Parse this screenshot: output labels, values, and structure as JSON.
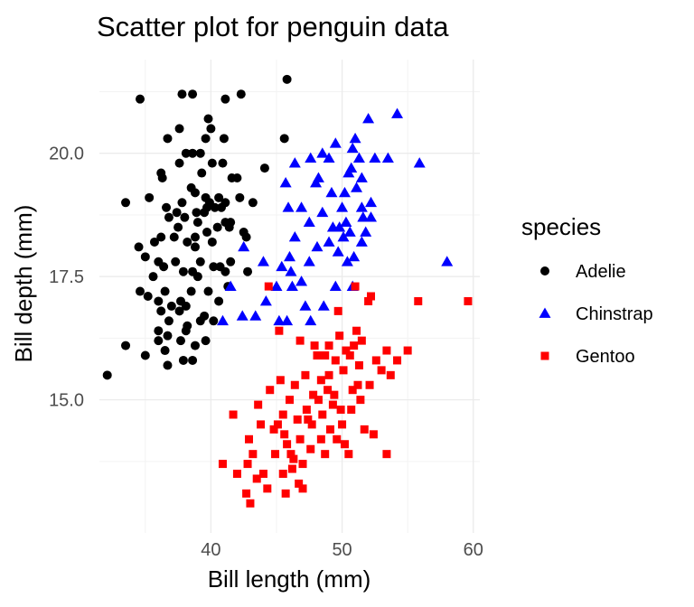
{
  "chart_data": {
    "type": "scatter",
    "title": "Scatter plot for penguin data",
    "xlabel": "Bill length (mm)",
    "ylabel": "Bill depth (mm)",
    "xlim": [
      31.5,
      60.5
    ],
    "ylim": [
      12.3,
      21.9
    ],
    "x_ticks": [
      40,
      50,
      60
    ],
    "x_tick_labels": [
      "40",
      "50",
      "60"
    ],
    "y_ticks": [
      15.0,
      17.5,
      20.0
    ],
    "y_tick_labels": [
      "15.0",
      "17.5",
      "20.0"
    ],
    "grid": true,
    "legend": {
      "title": "species",
      "position": "right"
    },
    "series": [
      {
        "name": "Adelie",
        "marker": "circle",
        "color": "#000000",
        "points": [
          [
            34.6,
            21.1
          ],
          [
            37.8,
            21.2
          ],
          [
            38.6,
            21.2
          ],
          [
            41.1,
            21.1
          ],
          [
            42.3,
            21.2
          ],
          [
            45.8,
            21.5
          ],
          [
            39.8,
            20.7
          ],
          [
            37.6,
            20.5
          ],
          [
            39.6,
            20.3
          ],
          [
            40.0,
            20.5
          ],
          [
            36.7,
            20.3
          ],
          [
            41.0,
            20.3
          ],
          [
            45.6,
            20.3
          ],
          [
            38.1,
            20.0
          ],
          [
            38.6,
            20.0
          ],
          [
            39.2,
            20.0
          ],
          [
            37.6,
            19.8
          ],
          [
            40.1,
            19.8
          ],
          [
            40.9,
            19.8
          ],
          [
            44.1,
            19.7
          ],
          [
            36.2,
            19.6
          ],
          [
            39.3,
            19.6
          ],
          [
            41.6,
            19.5
          ],
          [
            42.0,
            19.5
          ],
          [
            35.3,
            19.1
          ],
          [
            36.6,
            18.9
          ],
          [
            37.8,
            19.0
          ],
          [
            38.8,
            19.2
          ],
          [
            39.6,
            19.1
          ],
          [
            40.6,
            19.1
          ],
          [
            41.1,
            19.0
          ],
          [
            42.2,
            19.1
          ],
          [
            43.2,
            19.0
          ],
          [
            36.8,
            18.7
          ],
          [
            38.0,
            18.7
          ],
          [
            38.9,
            18.8
          ],
          [
            39.5,
            18.8
          ],
          [
            40.3,
            18.9
          ],
          [
            40.8,
            18.9
          ],
          [
            41.5,
            18.6
          ],
          [
            42.5,
            18.4
          ],
          [
            33.5,
            19.0
          ],
          [
            34.5,
            18.1
          ],
          [
            35.7,
            18.2
          ],
          [
            36.2,
            18.3
          ],
          [
            37.2,
            18.3
          ],
          [
            38.2,
            18.2
          ],
          [
            38.8,
            18.1
          ],
          [
            39.7,
            18.4
          ],
          [
            40.5,
            18.5
          ],
          [
            41.4,
            18.5
          ],
          [
            42.7,
            18.3
          ],
          [
            35.0,
            17.9
          ],
          [
            36.0,
            17.8
          ],
          [
            36.4,
            17.7
          ],
          [
            37.3,
            17.8
          ],
          [
            37.9,
            17.6
          ],
          [
            38.6,
            17.6
          ],
          [
            39.0,
            17.5
          ],
          [
            39.2,
            17.8
          ],
          [
            40.2,
            17.7
          ],
          [
            40.7,
            17.7
          ],
          [
            41.1,
            17.6
          ],
          [
            41.5,
            17.8
          ],
          [
            42.8,
            17.6
          ],
          [
            35.2,
            17.1
          ],
          [
            36.0,
            17.0
          ],
          [
            36.5,
            17.2
          ],
          [
            37.0,
            16.9
          ],
          [
            37.7,
            17.0
          ],
          [
            38.1,
            16.9
          ],
          [
            38.5,
            17.2
          ],
          [
            39.5,
            16.7
          ],
          [
            39.8,
            17.2
          ],
          [
            40.6,
            17.0
          ],
          [
            41.3,
            17.3
          ],
          [
            34.6,
            17.2
          ],
          [
            36.2,
            16.8
          ],
          [
            36.8,
            16.6
          ],
          [
            37.6,
            16.8
          ],
          [
            38.2,
            16.5
          ],
          [
            39.2,
            16.6
          ],
          [
            40.2,
            16.6
          ],
          [
            36.0,
            16.4
          ],
          [
            36.7,
            16.3
          ],
          [
            37.7,
            16.2
          ],
          [
            38.8,
            16.1
          ],
          [
            39.6,
            16.2
          ],
          [
            33.5,
            16.1
          ],
          [
            36.0,
            16.2
          ],
          [
            36.5,
            16.0
          ],
          [
            35.0,
            15.9
          ],
          [
            37.9,
            15.8
          ],
          [
            38.6,
            15.8
          ],
          [
            38.1,
            16.4
          ],
          [
            32.1,
            15.5
          ],
          [
            36.7,
            15.7
          ],
          [
            35.6,
            17.5
          ],
          [
            39.0,
            18.6
          ],
          [
            40.1,
            18.2
          ],
          [
            37.4,
            18.8
          ],
          [
            38.5,
            19.3
          ],
          [
            39.7,
            18.9
          ],
          [
            41.1,
            18.6
          ],
          [
            37.5,
            18.5
          ],
          [
            38.8,
            18.3
          ],
          [
            36.3,
            19.5
          ],
          [
            39.9,
            19.0
          ]
        ]
      },
      {
        "name": "Chinstrap",
        "marker": "triangle",
        "color": "#0000ff",
        "points": [
          [
            54.2,
            20.8
          ],
          [
            52.0,
            20.7
          ],
          [
            51.0,
            20.3
          ],
          [
            49.5,
            20.2
          ],
          [
            50.8,
            20.1
          ],
          [
            48.5,
            20.0
          ],
          [
            47.6,
            19.9
          ],
          [
            46.4,
            19.8
          ],
          [
            49.0,
            19.9
          ],
          [
            50.7,
            19.7
          ],
          [
            51.3,
            19.9
          ],
          [
            52.5,
            19.9
          ],
          [
            53.5,
            19.9
          ],
          [
            55.9,
            19.8
          ],
          [
            48.2,
            19.5
          ],
          [
            50.5,
            19.6
          ],
          [
            51.5,
            19.5
          ],
          [
            45.7,
            19.4
          ],
          [
            49.2,
            19.2
          ],
          [
            50.2,
            19.2
          ],
          [
            51.1,
            19.3
          ],
          [
            52.2,
            19.0
          ],
          [
            46.9,
            18.9
          ],
          [
            51.5,
            18.9
          ],
          [
            48.5,
            18.8
          ],
          [
            50.0,
            18.9
          ],
          [
            45.9,
            18.9
          ],
          [
            51.6,
            18.7
          ],
          [
            47.5,
            18.6
          ],
          [
            50.3,
            18.6
          ],
          [
            52.2,
            18.7
          ],
          [
            49.3,
            18.5
          ],
          [
            50.6,
            18.4
          ],
          [
            51.8,
            18.4
          ],
          [
            46.4,
            18.3
          ],
          [
            49.0,
            18.2
          ],
          [
            50.1,
            18.3
          ],
          [
            48.1,
            18.1
          ],
          [
            51.5,
            18.2
          ],
          [
            42.5,
            18.1
          ],
          [
            49.7,
            18.0
          ],
          [
            50.9,
            17.9
          ],
          [
            46.0,
            17.9
          ],
          [
            47.5,
            17.8
          ],
          [
            44.0,
            17.8
          ],
          [
            45.4,
            17.7
          ],
          [
            50.4,
            17.8
          ],
          [
            58.0,
            17.8
          ],
          [
            46.9,
            17.4
          ],
          [
            41.5,
            17.3
          ],
          [
            45.0,
            17.3
          ],
          [
            46.2,
            17.3
          ],
          [
            50.8,
            17.3
          ],
          [
            43.4,
            16.7
          ],
          [
            45.2,
            16.6
          ],
          [
            49.5,
            17.3
          ],
          [
            48.6,
            16.9
          ],
          [
            44.2,
            17.0
          ],
          [
            47.2,
            16.9
          ],
          [
            45.8,
            16.6
          ],
          [
            47.6,
            16.6
          ],
          [
            40.9,
            16.6
          ],
          [
            42.4,
            16.7
          ],
          [
            46.1,
            17.6
          ],
          [
            49.8,
            18.5
          ],
          [
            48.0,
            19.4
          ]
        ]
      },
      {
        "name": "Gentoo",
        "marker": "square",
        "color": "#ff0000",
        "points": [
          [
            44.4,
            17.3
          ],
          [
            51.0,
            17.3
          ],
          [
            52.2,
            17.1
          ],
          [
            52.0,
            17.0
          ],
          [
            55.8,
            17.0
          ],
          [
            59.6,
            17.0
          ],
          [
            49.7,
            16.8
          ],
          [
            45.2,
            16.4
          ],
          [
            51.1,
            16.4
          ],
          [
            46.8,
            16.2
          ],
          [
            49.0,
            16.1
          ],
          [
            50.3,
            16.0
          ],
          [
            50.9,
            16.1
          ],
          [
            53.4,
            16.0
          ],
          [
            48.7,
            15.9
          ],
          [
            54.2,
            15.8
          ],
          [
            55.0,
            16.0
          ],
          [
            49.5,
            15.8
          ],
          [
            51.3,
            15.7
          ],
          [
            52.6,
            15.8
          ],
          [
            50.1,
            15.6
          ],
          [
            53.7,
            15.5
          ],
          [
            47.2,
            15.5
          ],
          [
            48.4,
            15.4
          ],
          [
            49.0,
            15.5
          ],
          [
            45.3,
            15.4
          ],
          [
            51.2,
            15.3
          ],
          [
            46.4,
            15.3
          ],
          [
            52.1,
            15.3
          ],
          [
            44.5,
            15.2
          ],
          [
            47.8,
            15.1
          ],
          [
            50.8,
            15.2
          ],
          [
            43.6,
            14.9
          ],
          [
            46.0,
            15.0
          ],
          [
            48.2,
            15.0
          ],
          [
            49.4,
            15.1
          ],
          [
            51.4,
            15.0
          ],
          [
            45.5,
            14.7
          ],
          [
            47.3,
            14.8
          ],
          [
            48.5,
            14.7
          ],
          [
            49.9,
            14.8
          ],
          [
            50.7,
            14.8
          ],
          [
            41.7,
            14.7
          ],
          [
            43.8,
            14.5
          ],
          [
            45.1,
            14.5
          ],
          [
            46.6,
            14.6
          ],
          [
            47.7,
            14.5
          ],
          [
            49.1,
            14.4
          ],
          [
            50.0,
            14.5
          ],
          [
            51.7,
            14.4
          ],
          [
            42.9,
            14.2
          ],
          [
            45.6,
            14.3
          ],
          [
            46.8,
            14.2
          ],
          [
            48.4,
            14.2
          ],
          [
            49.6,
            14.2
          ],
          [
            52.4,
            14.3
          ],
          [
            43.2,
            13.9
          ],
          [
            44.9,
            13.9
          ],
          [
            46.1,
            13.9
          ],
          [
            47.6,
            14.0
          ],
          [
            48.7,
            13.9
          ],
          [
            50.5,
            13.9
          ],
          [
            53.4,
            13.9
          ],
          [
            42.8,
            13.7
          ],
          [
            44.0,
            13.5
          ],
          [
            46.2,
            13.6
          ],
          [
            47.0,
            13.7
          ],
          [
            40.9,
            13.7
          ],
          [
            42.0,
            13.5
          ],
          [
            43.5,
            13.4
          ],
          [
            45.5,
            13.5
          ],
          [
            46.7,
            13.3
          ],
          [
            44.3,
            13.2
          ],
          [
            42.7,
            13.1
          ],
          [
            45.7,
            13.1
          ],
          [
            43.0,
            12.9
          ],
          [
            47.0,
            13.2
          ],
          [
            46.3,
            13.8
          ],
          [
            49.3,
            14.9
          ],
          [
            47.9,
            16.1
          ],
          [
            48.1,
            15.9
          ],
          [
            50.6,
            15.9
          ],
          [
            51.5,
            16.2
          ],
          [
            50.2,
            14.1
          ],
          [
            47.4,
            14.6
          ],
          [
            45.8,
            14.1
          ],
          [
            48.9,
            15.2
          ],
          [
            44.8,
            14.4
          ],
          [
            49.8,
            16.3
          ],
          [
            53.0,
            15.6
          ]
        ]
      }
    ]
  }
}
